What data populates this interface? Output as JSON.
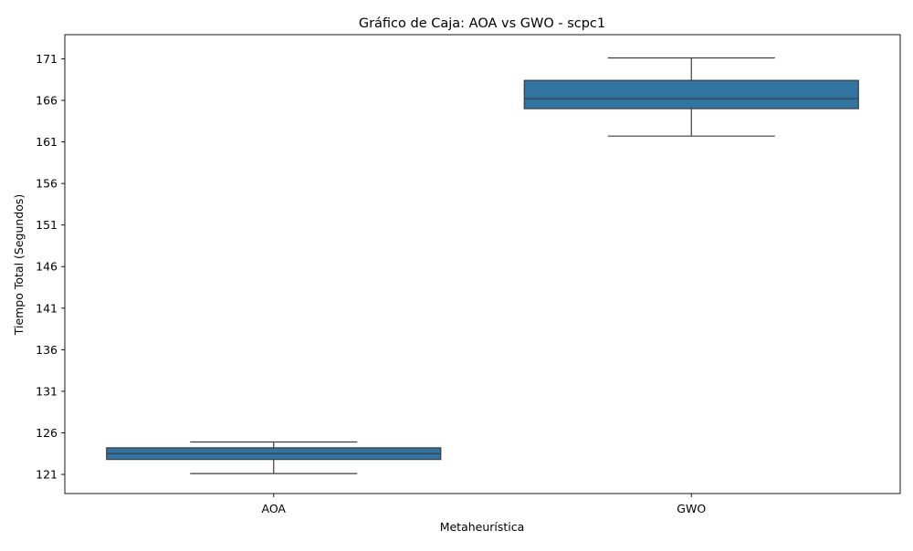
{
  "chart_data": {
    "type": "box",
    "title": "Gráfico de Caja: AOA vs GWO - scpc1",
    "xlabel": "Metaheurística",
    "ylabel": "Tiempo Total (Segundos)",
    "ylim": [
      118.7,
      173.9
    ],
    "yticks": [
      121,
      126,
      131,
      136,
      141,
      146,
      151,
      156,
      161,
      166,
      171
    ],
    "categories": [
      "AOA",
      "GWO"
    ],
    "boxes": [
      {
        "category": "AOA",
        "whisker_low": 121.1,
        "q1": 122.8,
        "median": 123.5,
        "q3": 124.2,
        "whisker_high": 124.9
      },
      {
        "category": "GWO",
        "whisker_low": 161.7,
        "q1": 165.0,
        "median": 166.2,
        "q3": 168.4,
        "whisker_high": 171.1
      }
    ],
    "box_color": "#3274a1",
    "line_color": "#3d3d3d",
    "grid": false
  }
}
